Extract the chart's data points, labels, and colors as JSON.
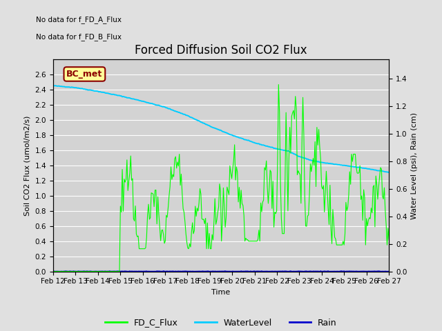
{
  "title": "Forced Diffusion Soil CO2 Flux",
  "xlabel": "Time",
  "ylabel_left": "Soil CO2 Flux (umol/m2/s)",
  "ylabel_right": "Water Level (psi), Rain (cm)",
  "no_data_text1": "No data for f_FD_A_Flux",
  "no_data_text2": "No data for f_FD_B_Flux",
  "bc_met_label": "BC_met",
  "legend_entries": [
    "FD_C_Flux",
    "WaterLevel",
    "Rain"
  ],
  "legend_colors": [
    "#00ff00",
    "#00ccff",
    "#0000cc"
  ],
  "ylim_left": [
    0.0,
    2.8
  ],
  "ylim_right": [
    0.0,
    1.54
  ],
  "yticks_left": [
    0.0,
    0.2,
    0.4,
    0.6,
    0.8,
    1.0,
    1.2,
    1.4,
    1.6,
    1.8,
    2.0,
    2.2,
    2.4,
    2.6
  ],
  "yticks_right": [
    0.0,
    0.2,
    0.4,
    0.6,
    0.8,
    1.0,
    1.2,
    1.4
  ],
  "background_color": "#e0e0e0",
  "plot_bg_color": "#d3d3d3",
  "fd_c_flux_color": "#00ff00",
  "water_level_color": "#00ccff",
  "rain_color": "#0000cc",
  "title_fontsize": 12,
  "axis_label_fontsize": 8,
  "tick_fontsize": 7.5
}
